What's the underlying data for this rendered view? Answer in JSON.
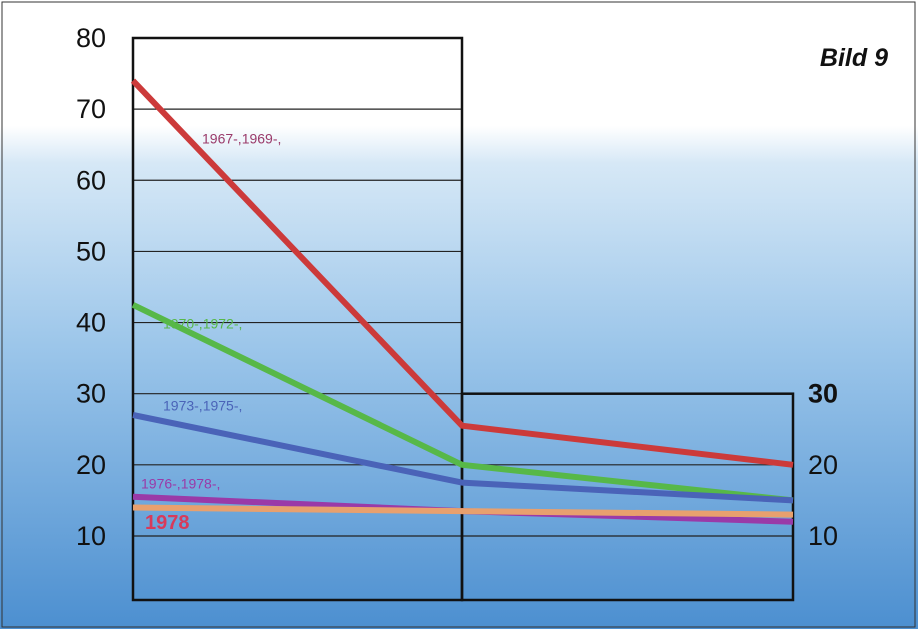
{
  "badge": "Bild 9",
  "chart_data": {
    "type": "line",
    "x": [
      0,
      1,
      2
    ],
    "left_axis": {
      "ticks": [
        10,
        20,
        30,
        40,
        50,
        60,
        70,
        80
      ],
      "ylim": [
        1,
        80
      ]
    },
    "right_axis": {
      "ticks": [
        10,
        20,
        30
      ]
    },
    "grid": true,
    "series": [
      {
        "name": "1967-,1969-,",
        "color": "#cc3a3a",
        "values": [
          74,
          25.5,
          20
        ]
      },
      {
        "name": "1970-,1972-,",
        "color": "#57b848",
        "values": [
          42.5,
          20,
          15
        ]
      },
      {
        "name": "1973-,1975-,",
        "color": "#4a63b8",
        "values": [
          27,
          17.5,
          15
        ]
      },
      {
        "name": "1976-,1978-,",
        "color": "#9a3aa8",
        "values": [
          15.5,
          13.5,
          12
        ]
      },
      {
        "name": "1978",
        "color": "#e8a06e",
        "values": [
          14,
          13.5,
          13
        ]
      }
    ]
  }
}
